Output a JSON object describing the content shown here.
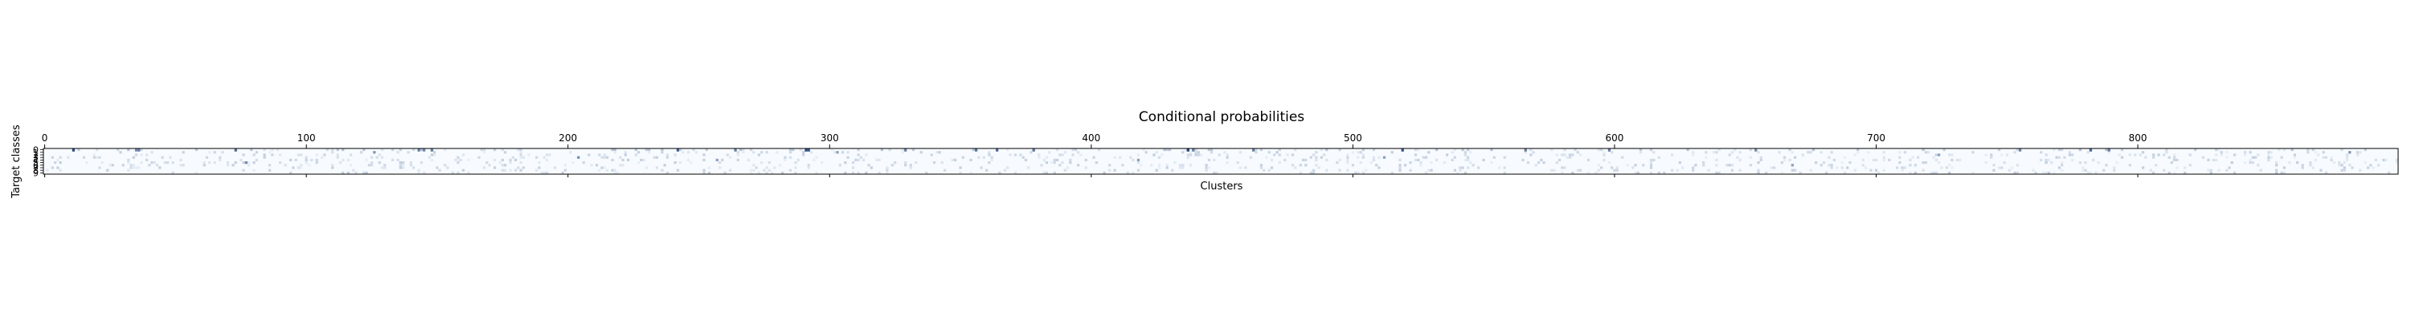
{
  "chart_data": {
    "type": "heatmap",
    "title": "Conditional probabilities",
    "xlabel": "Clusters",
    "ylabel": "Target classes",
    "x_ticks": [
      "0",
      "100",
      "200",
      "300",
      "400",
      "500",
      "600",
      "700",
      "800"
    ],
    "x_tick_values": [
      0,
      100,
      200,
      300,
      400,
      500,
      600,
      700,
      800
    ],
    "x_tick_position": "top",
    "y_ticks": [
      "0",
      "1",
      "2",
      "3",
      "4",
      "5",
      "6",
      "7",
      "8",
      "9"
    ],
    "num_clusters": 900,
    "num_classes": 10,
    "xlim": [
      -0.5,
      899.5
    ],
    "ylim": [
      9.5,
      -0.5
    ],
    "colormap": "Blues",
    "colormap_low": "#f7fbff",
    "colormap_high": "#08306b",
    "frame_color": "#000000",
    "grid": false,
    "legend": "none",
    "notable_cells": [
      {
        "cluster": 11,
        "class": 0,
        "value": 0.85
      },
      {
        "cluster": 35,
        "class": 0,
        "value": 0.55
      },
      {
        "cluster": 36,
        "class": 0,
        "value": 0.6
      },
      {
        "cluster": 73,
        "class": 0,
        "value": 0.7
      },
      {
        "cluster": 143,
        "class": 0,
        "value": 0.6
      },
      {
        "cluster": 145,
        "class": 0,
        "value": 0.55
      },
      {
        "cluster": 148,
        "class": 0,
        "value": 0.6
      },
      {
        "cluster": 242,
        "class": 0,
        "value": 0.75
      },
      {
        "cluster": 264,
        "class": 0,
        "value": 0.6
      },
      {
        "cluster": 291,
        "class": 0,
        "value": 0.85
      },
      {
        "cluster": 292,
        "class": 0,
        "value": 0.8
      },
      {
        "cluster": 329,
        "class": 0,
        "value": 0.6
      },
      {
        "cluster": 356,
        "class": 0,
        "value": 0.65
      },
      {
        "cluster": 364,
        "class": 0,
        "value": 0.7
      },
      {
        "cluster": 378,
        "class": 0,
        "value": 0.65
      },
      {
        "cluster": 437,
        "class": 0,
        "value": 0.9
      },
      {
        "cluster": 439,
        "class": 0,
        "value": 0.6
      },
      {
        "cluster": 462,
        "class": 0,
        "value": 0.6
      },
      {
        "cluster": 519,
        "class": 0,
        "value": 0.8
      },
      {
        "cluster": 566,
        "class": 0,
        "value": 0.6
      },
      {
        "cluster": 598,
        "class": 0,
        "value": 0.6
      },
      {
        "cluster": 654,
        "class": 0,
        "value": 0.55
      },
      {
        "cluster": 755,
        "class": 0,
        "value": 0.55
      },
      {
        "cluster": 782,
        "class": 0,
        "value": 0.7
      },
      {
        "cluster": 789,
        "class": 0,
        "value": 0.6
      },
      {
        "cluster": 77,
        "class": 5,
        "value": 0.55
      },
      {
        "cluster": 126,
        "class": 1,
        "value": 0.5
      },
      {
        "cluster": 204,
        "class": 3,
        "value": 0.55
      },
      {
        "cluster": 257,
        "class": 4,
        "value": 0.45
      },
      {
        "cluster": 303,
        "class": 1,
        "value": 0.45
      },
      {
        "cluster": 418,
        "class": 4,
        "value": 0.45
      },
      {
        "cluster": 512,
        "class": 3,
        "value": 0.45
      },
      {
        "cluster": 668,
        "class": 6,
        "value": 0.45
      },
      {
        "cluster": 724,
        "class": 2,
        "value": 0.45
      },
      {
        "cluster": 881,
        "class": 1,
        "value": 0.5
      }
    ]
  }
}
